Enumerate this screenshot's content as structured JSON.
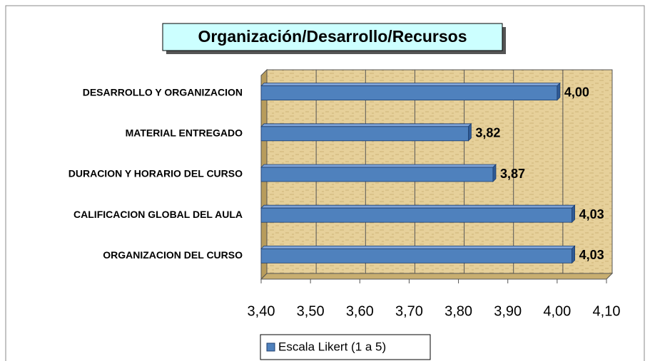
{
  "chart_data": {
    "type": "bar",
    "orientation": "horizontal",
    "title": "Organización/Desarrollo/Recursos",
    "categories": [
      "DESARROLLO Y ORGANIZACION",
      "MATERIAL ENTREGADO",
      "DURACION Y HORARIO DEL CURSO",
      "CALIFICACION GLOBAL DEL AULA",
      "ORGANIZACION DEL CURSO"
    ],
    "series": [
      {
        "name": "Escala Likert (1 a 5)",
        "color": "#4f81bd",
        "values": [
          4.0,
          3.82,
          3.87,
          4.03,
          4.03
        ],
        "value_labels": [
          "4,00",
          "3,82",
          "3,87",
          "4,03",
          "4,03"
        ]
      }
    ],
    "xlim": [
      3.4,
      4.1
    ],
    "xticks": [
      {
        "value": 3.4,
        "label": "3,40"
      },
      {
        "value": 3.5,
        "label": "3,50"
      },
      {
        "value": 3.6,
        "label": "3,60"
      },
      {
        "value": 3.7,
        "label": "3,70"
      },
      {
        "value": 3.8,
        "label": "3,80"
      },
      {
        "value": 3.9,
        "label": "3,90"
      },
      {
        "value": 4.0,
        "label": "4,00"
      },
      {
        "value": 4.1,
        "label": "4,10"
      }
    ],
    "grid": true,
    "legend": "bottom"
  }
}
